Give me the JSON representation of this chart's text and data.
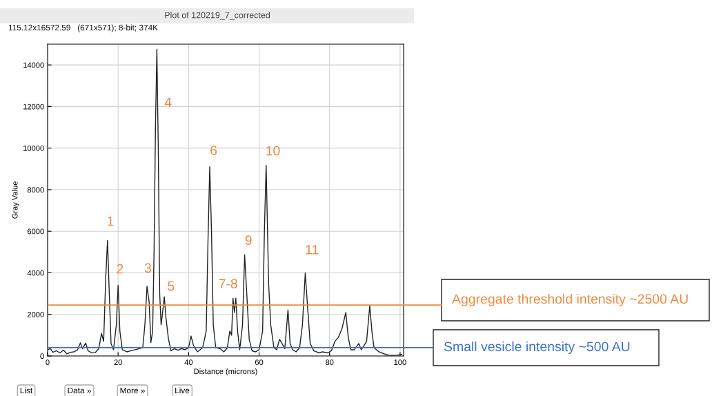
{
  "chart_data": {
    "type": "line",
    "title": "Plot of 120219_7_corrected",
    "subtitle": "115.12x16572.59   (671x571); 8-bit; 374K",
    "xlabel": "Distance (microns)",
    "ylabel": "Gray Value",
    "xlim": [
      0,
      101
    ],
    "ylim": [
      0,
      15000
    ],
    "xticks": [
      0,
      20,
      40,
      60,
      80,
      100
    ],
    "yticks": [
      0,
      2000,
      4000,
      6000,
      8000,
      10000,
      12000,
      14000
    ],
    "grid": true,
    "marker": "none",
    "line_style": "solid",
    "series": [
      {
        "color": "#222222",
        "x": [
          0,
          0.8,
          1.5,
          2.5,
          3.5,
          4.5,
          5.5,
          6.5,
          7.5,
          8.5,
          9.3,
          9.9,
          10.8,
          11.5,
          12.5,
          13.5,
          14.5,
          15.3,
          15.9,
          16.5,
          17.0,
          17.5,
          18.0,
          18.7,
          19.5,
          20.0,
          20.5,
          21.2,
          22.5,
          24,
          25.5,
          27,
          27.6,
          28.2,
          28.8,
          29.3,
          29.8,
          30.2,
          30.6,
          31.0,
          31.4,
          31.8,
          32.2,
          32.7,
          33.1,
          33.6,
          34.3,
          35,
          36,
          37,
          38,
          39,
          40,
          40.7,
          41.4,
          42.5,
          44,
          45,
          45.5,
          46.0,
          46.5,
          47.0,
          47.7,
          49,
          50,
          51,
          51.7,
          52.2,
          52.6,
          53.0,
          53.4,
          53.9,
          54.5,
          55.3,
          55.9,
          56.5,
          57.2,
          58,
          59,
          60,
          61,
          61.5,
          62.0,
          62.4,
          62.7,
          63.3,
          64.2,
          65,
          65.8,
          66.5,
          67.3,
          68.2,
          68.8,
          69.5,
          70.5,
          71.5,
          72.3,
          73.1,
          73.7,
          74.5,
          75.5,
          77,
          78,
          79.5,
          80.5,
          81.5,
          82.5,
          83.5,
          84.6,
          85.3,
          86,
          87,
          88.3,
          89,
          90.5,
          91.4,
          92,
          92.6,
          94,
          95.5,
          97,
          99,
          100.5
        ],
        "values": [
          300,
          350,
          180,
          250,
          150,
          280,
          100,
          180,
          200,
          300,
          630,
          350,
          620,
          250,
          150,
          160,
          350,
          1080,
          700,
          3800,
          5560,
          3000,
          600,
          300,
          1500,
          3400,
          1200,
          300,
          200,
          270,
          330,
          400,
          1500,
          3350,
          2600,
          650,
          1200,
          5000,
          11000,
          14760,
          10000,
          3000,
          1500,
          2200,
          2850,
          1800,
          800,
          250,
          350,
          280,
          350,
          300,
          400,
          960,
          500,
          200,
          400,
          1200,
          5500,
          9100,
          6000,
          1500,
          400,
          350,
          200,
          400,
          1200,
          1000,
          2780,
          2100,
          2780,
          1200,
          300,
          1500,
          4870,
          3000,
          800,
          250,
          200,
          300,
          1200,
          6000,
          9170,
          6000,
          3500,
          1500,
          400,
          300,
          800,
          600,
          350,
          2220,
          600,
          300,
          200,
          400,
          1500,
          4000,
          2500,
          600,
          250,
          150,
          200,
          150,
          250,
          700,
          900,
          1300,
          2090,
          900,
          300,
          300,
          600,
          300,
          700,
          2420,
          1200,
          400,
          200,
          100,
          30,
          30,
          80
        ]
      }
    ],
    "ref_lines": [
      {
        "axis": "y",
        "value": 2450,
        "label": "Aggregate threshold intensity ~2500 AU",
        "color": "#f0883e"
      },
      {
        "axis": "y",
        "value": 400,
        "label": "Small vesicle intensity ~500 AU",
        "color": "#3a6fd0"
      }
    ],
    "annotations": [
      {
        "text": "1",
        "x": 17.0,
        "y": 5560
      },
      {
        "text": "2",
        "x": 20.0,
        "y": 3400
      },
      {
        "text": "3",
        "x": 28.2,
        "y": 3350
      },
      {
        "text": "4",
        "x": 31.2,
        "y": 12150
      },
      {
        "text": "5",
        "x": 33.1,
        "y": 2850
      },
      {
        "text": "6",
        "x": 46.0,
        "y": 9100
      },
      {
        "text": "7-8",
        "x": 53.4,
        "y": 2780
      },
      {
        "text": "9",
        "x": 55.9,
        "y": 4870
      },
      {
        "text": "10",
        "x": 62.0,
        "y": 9170
      },
      {
        "text": "11",
        "x": 73.1,
        "y": 4000
      },
      "List",
      "Data »",
      "More »",
      "Live"
    ]
  }
}
